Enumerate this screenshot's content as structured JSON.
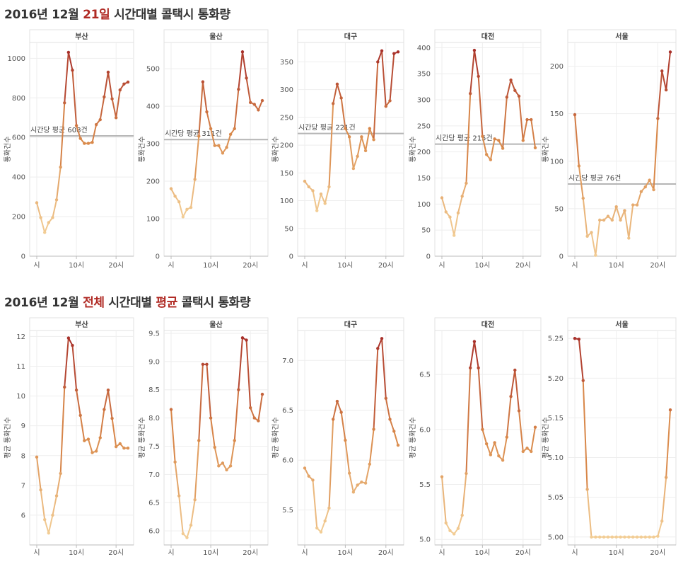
{
  "titles": {
    "t1_prefix": "2016년 12월 ",
    "t1_highlight": "21일",
    "t1_suffix": " 시간대별 콜택시 통화량",
    "t2_prefix": "2016년 12월 ",
    "t2_highlight1": "전체",
    "t2_middle": " 시간대별 ",
    "t2_highlight2": "평균",
    "t2_suffix": " 콜택시 통화량"
  },
  "colors": {
    "low": "#f2cd95",
    "mid": "#d9894a",
    "high": "#a8302a",
    "avg_line": "#b5b5b5",
    "grid": "#eeeeee"
  },
  "chart_data": [
    {
      "type": "line",
      "row": 1,
      "title": "부산",
      "ylabel": "통화건수",
      "x": [
        0,
        1,
        2,
        3,
        4,
        5,
        6,
        7,
        8,
        9,
        10,
        11,
        12,
        13,
        14,
        15,
        16,
        17,
        18,
        19,
        20,
        21,
        22,
        23
      ],
      "values": [
        270,
        195,
        120,
        170,
        195,
        285,
        450,
        775,
        1030,
        940,
        660,
        595,
        570,
        570,
        575,
        665,
        690,
        805,
        930,
        795,
        700,
        840,
        870,
        880
      ],
      "ylim": [
        0,
        1080
      ],
      "yticks": [
        0,
        200,
        400,
        600,
        800,
        1000
      ],
      "xticks": [
        0,
        10,
        20
      ],
      "xtick_labels": [
        "시",
        "10시",
        "20시"
      ],
      "avg": 608,
      "avg_label": "시간당 평균 608건"
    },
    {
      "type": "line",
      "row": 1,
      "title": "울산",
      "ylabel": "통화건수",
      "x": [
        0,
        1,
        2,
        3,
        4,
        5,
        6,
        7,
        8,
        9,
        10,
        11,
        12,
        13,
        14,
        15,
        16,
        17,
        18,
        19,
        20,
        21,
        22,
        23
      ],
      "values": [
        180,
        160,
        145,
        105,
        125,
        130,
        205,
        320,
        465,
        385,
        340,
        295,
        295,
        275,
        290,
        325,
        340,
        445,
        545,
        475,
        410,
        405,
        390,
        415
      ],
      "ylim": [
        0,
        570
      ],
      "yticks": [
        0,
        100,
        200,
        300,
        400,
        500
      ],
      "xticks": [
        0,
        10,
        20
      ],
      "xtick_labels": [
        "시",
        "10시",
        "20시"
      ],
      "avg": 311,
      "avg_label": "시간당 평균 311건"
    },
    {
      "type": "line",
      "row": 1,
      "title": "대구",
      "ylabel": "통화건수",
      "x": [
        0,
        1,
        2,
        3,
        4,
        5,
        6,
        7,
        8,
        9,
        10,
        11,
        12,
        13,
        14,
        15,
        16,
        17,
        18,
        19,
        20,
        21,
        22,
        23
      ],
      "values": [
        135,
        125,
        118,
        82,
        112,
        95,
        125,
        275,
        310,
        285,
        230,
        215,
        158,
        180,
        215,
        190,
        230,
        210,
        350,
        370,
        270,
        280,
        365,
        368
      ],
      "ylim": [
        0,
        385
      ],
      "yticks": [
        0,
        50,
        100,
        150,
        200,
        250,
        300,
        350
      ],
      "xticks": [
        0,
        10,
        20
      ],
      "xtick_labels": [
        "시",
        "10시",
        "20시"
      ],
      "avg": 221,
      "avg_label": "시간당 평균 221건"
    },
    {
      "type": "line",
      "row": 1,
      "title": "대전",
      "ylabel": "통화건수",
      "x": [
        0,
        1,
        2,
        3,
        4,
        5,
        6,
        7,
        8,
        9,
        10,
        11,
        12,
        13,
        14,
        15,
        16,
        17,
        18,
        19,
        20,
        21,
        22,
        23
      ],
      "values": [
        112,
        85,
        75,
        40,
        83,
        115,
        140,
        312,
        395,
        345,
        230,
        195,
        185,
        225,
        222,
        207,
        305,
        338,
        318,
        307,
        222,
        262,
        262,
        208
      ],
      "ylim": [
        0,
        410
      ],
      "yticks": [
        0,
        50,
        100,
        150,
        200,
        250,
        300,
        350,
        400
      ],
      "xticks": [
        0,
        10,
        20
      ],
      "xtick_labels": [
        "시",
        "10시",
        "20시"
      ],
      "avg": 215,
      "avg_label": "시간당 평균 215건"
    },
    {
      "type": "line",
      "row": 1,
      "title": "서울",
      "ylabel": "통화건수",
      "x": [
        0,
        1,
        2,
        3,
        4,
        5,
        6,
        7,
        8,
        9,
        10,
        11,
        12,
        13,
        14,
        15,
        16,
        17,
        18,
        19,
        20,
        21,
        22,
        23
      ],
      "values": [
        149,
        95,
        61,
        21,
        25,
        1,
        38,
        38,
        42,
        38,
        52,
        38,
        48,
        19,
        54,
        54,
        68,
        73,
        80,
        70,
        145,
        195,
        175,
        215
      ],
      "ylim": [
        0,
        225
      ],
      "yticks": [
        0,
        50,
        100,
        150,
        200
      ],
      "xticks": [
        0,
        10,
        20
      ],
      "xtick_labels": [
        "시",
        "10시",
        "20시"
      ],
      "avg": 76,
      "avg_label": "시간당 평균 76건"
    },
    {
      "type": "line",
      "row": 2,
      "title": "부산",
      "ylabel": "평균 통화건수",
      "x": [
        0,
        1,
        2,
        3,
        4,
        5,
        6,
        7,
        8,
        9,
        10,
        11,
        12,
        13,
        14,
        15,
        16,
        17,
        18,
        19,
        20,
        21,
        22,
        23
      ],
      "values": [
        7.95,
        6.85,
        5.85,
        5.4,
        6.0,
        6.65,
        7.4,
        10.3,
        11.95,
        11.7,
        10.2,
        9.35,
        8.5,
        8.55,
        8.1,
        8.15,
        8.6,
        9.55,
        10.2,
        9.25,
        8.3,
        8.4,
        8.25,
        8.25
      ],
      "ylim": [
        5.0,
        12.2
      ],
      "yticks": [
        6,
        7,
        8,
        9,
        10,
        11,
        12
      ],
      "xticks": [
        0,
        10,
        20
      ],
      "xtick_labels": [
        "시",
        "10시",
        "20시"
      ]
    },
    {
      "type": "line",
      "row": 2,
      "title": "울산",
      "ylabel": "평균 통화건수",
      "x": [
        0,
        1,
        2,
        3,
        4,
        5,
        6,
        7,
        8,
        9,
        10,
        11,
        12,
        13,
        14,
        15,
        16,
        17,
        18,
        19,
        20,
        21,
        22,
        23
      ],
      "values": [
        8.15,
        7.22,
        6.62,
        5.95,
        5.88,
        6.1,
        6.55,
        7.6,
        8.95,
        8.95,
        8.0,
        7.48,
        7.15,
        7.2,
        7.08,
        7.15,
        7.6,
        8.5,
        9.42,
        9.38,
        8.18,
        8.0,
        7.95,
        8.42
      ],
      "ylim": [
        5.75,
        9.55
      ],
      "yticks": [
        6.0,
        6.5,
        7.0,
        7.5,
        8.0,
        8.5,
        9.0,
        9.5
      ],
      "xticks": [
        0,
        10,
        20
      ],
      "xtick_labels": [
        "시",
        "10시",
        "20시"
      ]
    },
    {
      "type": "line",
      "row": 2,
      "title": "대구",
      "ylabel": "평균 통화건수",
      "x": [
        0,
        1,
        2,
        3,
        4,
        5,
        6,
        7,
        8,
        9,
        10,
        11,
        12,
        13,
        14,
        15,
        16,
        17,
        18,
        19,
        20,
        21,
        22,
        23
      ],
      "values": [
        5.92,
        5.84,
        5.8,
        5.32,
        5.28,
        5.39,
        5.52,
        6.41,
        6.59,
        6.48,
        6.2,
        5.87,
        5.68,
        5.75,
        5.78,
        5.77,
        5.96,
        6.31,
        7.12,
        7.22,
        6.62,
        6.41,
        6.29,
        6.15
      ],
      "ylim": [
        5.15,
        7.3
      ],
      "yticks": [
        5.5,
        6.0,
        6.5,
        7.0
      ],
      "xticks": [
        0,
        10,
        20
      ],
      "xtick_labels": [
        "시",
        "10시",
        "20시"
      ]
    },
    {
      "type": "line",
      "row": 2,
      "title": "대전",
      "ylabel": "평균 통화건수",
      "x": [
        0,
        1,
        2,
        3,
        4,
        5,
        6,
        7,
        8,
        9,
        10,
        11,
        12,
        13,
        14,
        15,
        16,
        17,
        18,
        19,
        20,
        21,
        22,
        23
      ],
      "values": [
        5.57,
        5.15,
        5.08,
        5.05,
        5.1,
        5.22,
        5.6,
        6.56,
        6.8,
        6.56,
        6.0,
        5.87,
        5.77,
        5.88,
        5.76,
        5.72,
        5.93,
        6.3,
        6.54,
        6.17,
        5.8,
        5.83,
        5.8,
        6.02
      ],
      "ylim": [
        4.95,
        6.9
      ],
      "yticks": [
        5.0,
        5.5,
        6.0,
        6.5
      ],
      "xticks": [
        0,
        10,
        20
      ],
      "xtick_labels": [
        "시",
        "10시",
        "20시"
      ]
    },
    {
      "type": "line",
      "row": 2,
      "title": "서울",
      "ylabel": "평균 통화건수",
      "x": [
        0,
        1,
        2,
        3,
        4,
        5,
        6,
        7,
        8,
        9,
        10,
        11,
        12,
        13,
        14,
        15,
        16,
        17,
        18,
        19,
        20,
        21,
        22,
        23
      ],
      "values": [
        5.25,
        5.249,
        5.197,
        5.06,
        5.0,
        5.0,
        5.0,
        5.0,
        5.0,
        5.0,
        5.0,
        5.0,
        5.0,
        5.0,
        5.0,
        5.0,
        5.0,
        5.0,
        5.0,
        5.0,
        5.001,
        5.02,
        5.075,
        5.16
      ],
      "ylim": [
        4.99,
        5.26
      ],
      "yticks": [
        5.0,
        5.05,
        5.1,
        5.15,
        5.2,
        5.25
      ],
      "xticks": [
        0,
        10,
        20
      ],
      "xtick_labels": [
        "시",
        "10시",
        "20시"
      ]
    }
  ]
}
